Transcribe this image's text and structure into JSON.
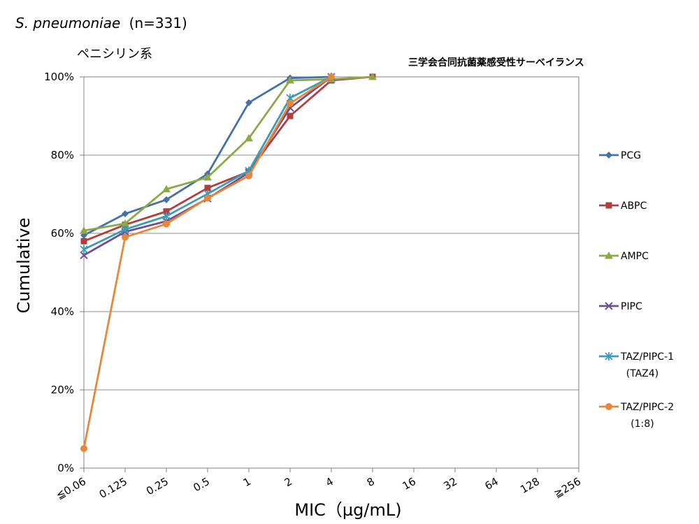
{
  "chart_data": {
    "type": "line",
    "title_species": "S. pneumoniae",
    "title_n": "(n=331)",
    "subtitle": "ペニシリン系",
    "annotation": "三学会合同抗菌薬感受性サーベイランス",
    "xlabel": "MIC（µg/mL)",
    "ylabel": "Cumulative",
    "categories": [
      "≦0.06",
      "0.125",
      "0.25",
      "0.5",
      "1",
      "2",
      "4",
      "8",
      "16",
      "32",
      "64",
      "128",
      "≧256"
    ],
    "y_ticks": [
      "0%",
      "20%",
      "40%",
      "60%",
      "80%",
      "100%"
    ],
    "ylim": [
      0,
      100
    ],
    "grid": true,
    "legend_position": "right",
    "series": [
      {
        "name": "PCG",
        "sub": "",
        "color": "#4472A8",
        "marker": "diamond",
        "values": [
          59.5,
          65.0,
          68.6,
          75.2,
          93.4,
          99.7,
          100,
          null,
          null,
          null,
          null,
          null,
          null
        ]
      },
      {
        "name": "ABPC",
        "sub": "",
        "color": "#B03E3A",
        "marker": "square",
        "values": [
          58.0,
          62.2,
          65.6,
          71.6,
          75.8,
          90.0,
          99.1,
          100,
          null,
          null,
          null,
          null,
          null
        ]
      },
      {
        "name": "AMPC",
        "sub": "",
        "color": "#8AAA48",
        "marker": "triangle",
        "values": [
          60.7,
          62.5,
          71.3,
          74.3,
          84.3,
          99.1,
          99.4,
          100,
          null,
          null,
          null,
          null,
          null
        ]
      },
      {
        "name": "PIPC",
        "sub": "",
        "color": "#6F4F92",
        "marker": "x",
        "values": [
          54.4,
          60.4,
          63.1,
          68.9,
          75.5,
          92.1,
          100,
          null,
          null,
          null,
          null,
          null,
          null
        ]
      },
      {
        "name": "TAZ/PIPC-1",
        "sub": "(TAZ4)",
        "color": "#3E9BB8",
        "marker": "star",
        "values": [
          55.9,
          61.0,
          64.4,
          70.1,
          76.0,
          94.6,
          100,
          null,
          null,
          null,
          null,
          null,
          null
        ]
      },
      {
        "name": "TAZ/PIPC-2",
        "sub": "(1:8)",
        "color": "#E8873A",
        "marker": "circle",
        "values": [
          5.0,
          59.0,
          62.4,
          69.0,
          74.7,
          93.2,
          100,
          null,
          null,
          null,
          null,
          null,
          null
        ]
      }
    ]
  }
}
